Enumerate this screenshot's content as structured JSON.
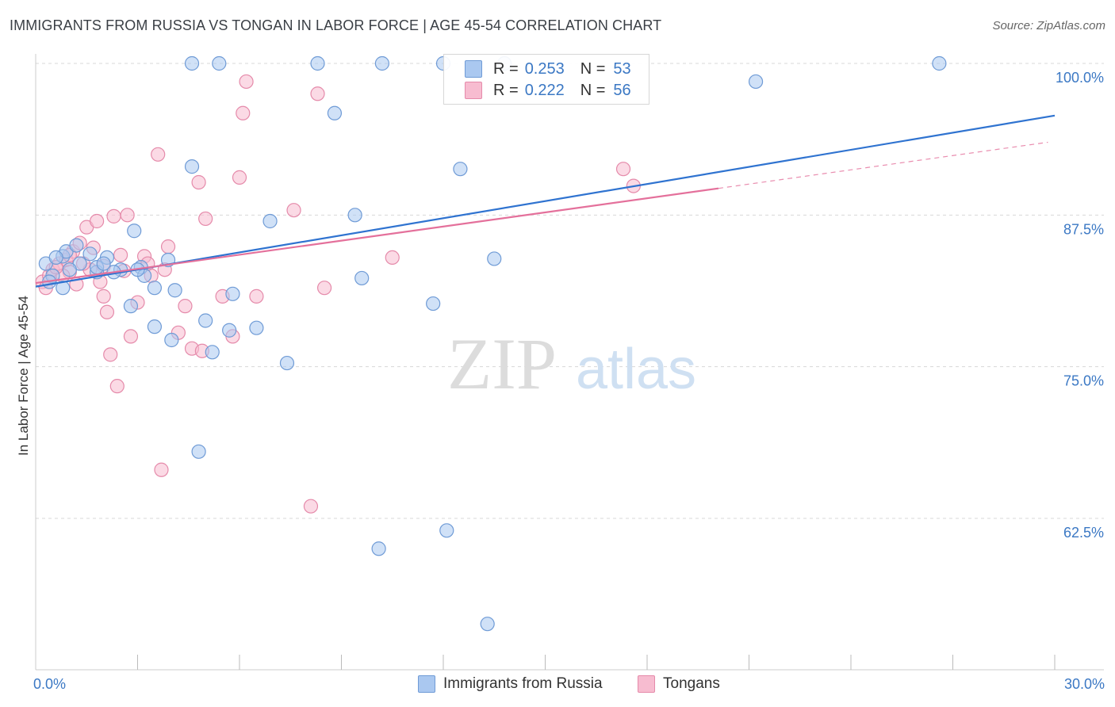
{
  "title": "IMMIGRANTS FROM RUSSIA VS TONGAN IN LABOR FORCE | AGE 45-54 CORRELATION CHART",
  "source": "Source: ZipAtlas.com",
  "watermark": {
    "zip": "ZIP",
    "atlas": "atlas"
  },
  "colors": {
    "russia_fill": "#aac8f0",
    "russia_stroke": "#6f9bd6",
    "russia_line": "#2f73d0",
    "tongan_fill": "#f7bcd0",
    "tongan_stroke": "#e58aaa",
    "tongan_line": "#e4709b",
    "tick_label": "#3b78c4",
    "grid": "#d8d8d8"
  },
  "legend_top": {
    "rows": [
      {
        "r_label": "R =",
        "r_value": "0.253",
        "n_label": "N =",
        "n_value": "53"
      },
      {
        "r_label": "R =",
        "r_value": "0.222",
        "n_label": "N =",
        "n_value": "56"
      }
    ]
  },
  "legend_bottom": {
    "items": [
      "Immigrants from Russia",
      "Tongans"
    ]
  },
  "chart_data": {
    "type": "scatter",
    "title": "IMMIGRANTS FROM RUSSIA VS TONGAN IN LABOR FORCE | AGE 45-54 CORRELATION CHART",
    "xlabel": "",
    "ylabel": "In Labor Force | Age 45-54",
    "xlim": [
      0,
      30
    ],
    "ylim": [
      50,
      101
    ],
    "x_tick_labels": [
      "0.0%",
      "30.0%"
    ],
    "y_ticks": [
      62.5,
      75.0,
      87.5,
      100.0
    ],
    "y_tick_labels": [
      "62.5%",
      "75.0%",
      "87.5%",
      "100.0%"
    ],
    "grid": true,
    "legend_placement": "top-center",
    "series": [
      {
        "name": "Immigrants from Russia",
        "r": 0.253,
        "n": 53,
        "trend": {
          "x": [
            0.0,
            30.0
          ],
          "y": [
            81.6,
            95.7
          ]
        },
        "points": [
          [
            0.3,
            83.5
          ],
          [
            0.5,
            82.5
          ],
          [
            0.8,
            84.1
          ],
          [
            0.9,
            84.5
          ],
          [
            1.2,
            85.0
          ],
          [
            0.4,
            82.0
          ],
          [
            0.8,
            81.5
          ],
          [
            1.3,
            83.5
          ],
          [
            1.6,
            84.3
          ],
          [
            1.8,
            82.8
          ],
          [
            2.1,
            84.0
          ],
          [
            2.5,
            83.0
          ],
          [
            2.3,
            82.8
          ],
          [
            2.9,
            86.2
          ],
          [
            3.1,
            83.2
          ],
          [
            3.2,
            82.5
          ],
          [
            3.5,
            81.5
          ],
          [
            3.9,
            83.8
          ],
          [
            2.8,
            80.0
          ],
          [
            3.5,
            78.3
          ],
          [
            4.1,
            81.3
          ],
          [
            4.0,
            77.2
          ],
          [
            4.6,
            91.5
          ],
          [
            5.0,
            78.8
          ],
          [
            5.2,
            76.2
          ],
          [
            5.7,
            78.0
          ],
          [
            5.8,
            81.0
          ],
          [
            6.5,
            78.2
          ],
          [
            6.9,
            87.0
          ],
          [
            7.4,
            75.3
          ],
          [
            8.3,
            100.0
          ],
          [
            8.8,
            95.9
          ],
          [
            9.4,
            87.5
          ],
          [
            9.6,
            82.3
          ],
          [
            10.2,
            100.0
          ],
          [
            10.1,
            60.0
          ],
          [
            11.7,
            80.2
          ],
          [
            12.0,
            100.0
          ],
          [
            12.1,
            61.5
          ],
          [
            12.5,
            91.3
          ],
          [
            13.5,
            83.9
          ],
          [
            13.3,
            53.8
          ],
          [
            4.6,
            100.0
          ],
          [
            5.4,
            100.0
          ],
          [
            4.8,
            68.0
          ],
          [
            21.2,
            98.5
          ],
          [
            26.6,
            100.0
          ],
          [
            13.8,
            100.0
          ],
          [
            1.8,
            83.2
          ],
          [
            3.0,
            83.0
          ],
          [
            2.0,
            83.5
          ],
          [
            0.6,
            84.0
          ],
          [
            1.0,
            83.0
          ]
        ]
      },
      {
        "name": "Tongans",
        "r": 0.222,
        "n": 56,
        "trend": {
          "x": [
            0.0,
            20.1
          ],
          "y": [
            81.9,
            89.7
          ]
        },
        "trend_dashed": {
          "x": [
            20.1,
            29.8
          ],
          "y": [
            89.7,
            93.5
          ]
        },
        "points": [
          [
            0.2,
            82.0
          ],
          [
            0.4,
            82.5
          ],
          [
            0.5,
            83.0
          ],
          [
            0.7,
            83.5
          ],
          [
            0.9,
            83.8
          ],
          [
            1.0,
            82.8
          ],
          [
            1.1,
            84.5
          ],
          [
            1.3,
            85.2
          ],
          [
            1.5,
            86.5
          ],
          [
            1.6,
            83.0
          ],
          [
            1.8,
            87.0
          ],
          [
            1.9,
            82.0
          ],
          [
            2.0,
            80.8
          ],
          [
            2.1,
            79.5
          ],
          [
            2.2,
            76.0
          ],
          [
            2.4,
            73.4
          ],
          [
            2.3,
            87.4
          ],
          [
            2.5,
            84.2
          ],
          [
            2.6,
            82.9
          ],
          [
            2.7,
            87.5
          ],
          [
            2.8,
            77.5
          ],
          [
            3.0,
            80.3
          ],
          [
            3.2,
            84.1
          ],
          [
            3.4,
            82.5
          ],
          [
            3.6,
            92.5
          ],
          [
            3.7,
            66.5
          ],
          [
            3.8,
            83.0
          ],
          [
            3.9,
            84.9
          ],
          [
            4.2,
            77.8
          ],
          [
            4.4,
            80.0
          ],
          [
            4.6,
            76.5
          ],
          [
            4.8,
            90.2
          ],
          [
            4.9,
            76.3
          ],
          [
            5.0,
            87.2
          ],
          [
            5.5,
            80.8
          ],
          [
            5.8,
            77.5
          ],
          [
            6.0,
            90.6
          ],
          [
            6.1,
            95.9
          ],
          [
            6.2,
            98.5
          ],
          [
            6.5,
            80.8
          ],
          [
            7.6,
            87.9
          ],
          [
            8.1,
            63.5
          ],
          [
            8.3,
            97.5
          ],
          [
            8.5,
            81.5
          ],
          [
            10.5,
            84.0
          ],
          [
            17.3,
            91.3
          ],
          [
            17.6,
            89.9
          ],
          [
            1.4,
            83.5
          ],
          [
            0.8,
            82.5
          ],
          [
            1.2,
            81.8
          ],
          [
            2.0,
            83.3
          ],
          [
            0.3,
            81.5
          ],
          [
            0.6,
            83.2
          ],
          [
            1.7,
            84.8
          ],
          [
            3.3,
            83.5
          ],
          [
            1.0,
            84.2
          ]
        ]
      }
    ]
  }
}
